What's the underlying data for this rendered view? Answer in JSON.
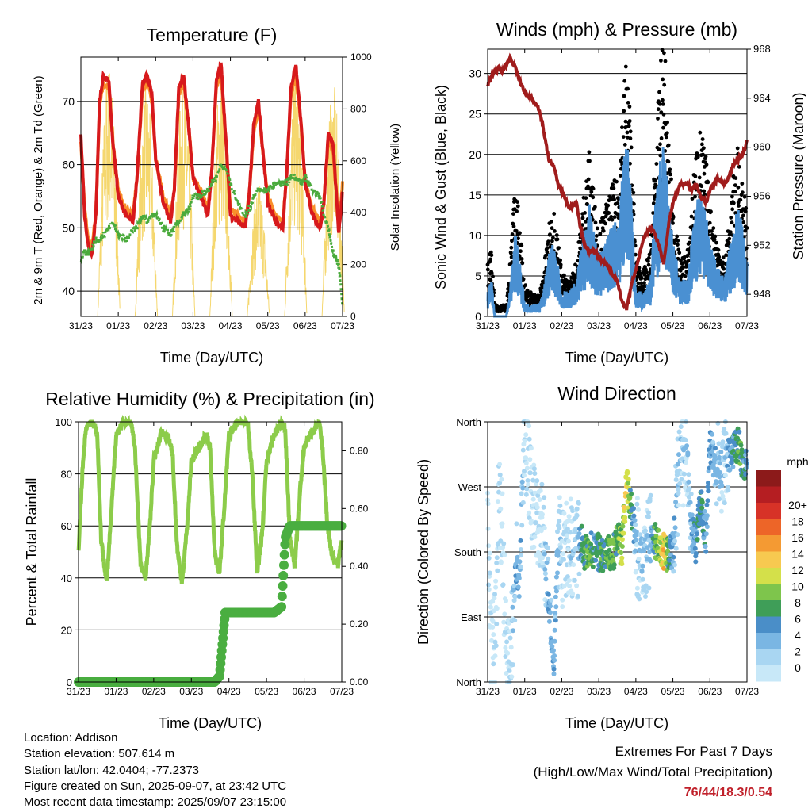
{
  "colors": {
    "temp2m": "#d7191c",
    "temp9m": "#f98e2b",
    "dewpoint": "#4aaa3c",
    "solar": "#f5d76e",
    "gust": "#000000",
    "wind": "#4a90d2",
    "pressure": "#a01c1c",
    "rh": "#8ccc4a",
    "precip": "#4aae40",
    "extremes": "#c0202a",
    "wind_scale": [
      "#c8e8f8",
      "#a9d6f2",
      "#7ab6e3",
      "#4a8ec8",
      "#3f9e58",
      "#7ec54c",
      "#d4e04a",
      "#f7c950",
      "#f49a33",
      "#ed6528",
      "#d73227",
      "#b51e22",
      "#8c1a1a"
    ]
  },
  "x_ticks": [
    "31/23",
    "01/23",
    "02/23",
    "03/23",
    "04/23",
    "05/23",
    "06/23",
    "07/23"
  ],
  "panels": {
    "temperature": {
      "title": "Temperature (F)",
      "xlabel": "Time (Day/UTC)",
      "ylabel_left": "2m & 9m T (Red, Orange) & 2m Td (Green)",
      "ylabel_right": "Solar Insolation (Yellow)",
      "left_ticks": [
        "40",
        "50",
        "60",
        "70"
      ],
      "right_ticks": [
        "0",
        "200",
        "400",
        "600",
        "800",
        "1000"
      ]
    },
    "winds": {
      "title": "Winds (mph) & Pressure (mb)",
      "xlabel": "Time (Day/UTC)",
      "ylabel_left": "Sonic Wind & Gust (Blue, Black)",
      "ylabel_right": "Station Pressure (Maroon)",
      "left_ticks": [
        "0",
        "5",
        "10",
        "15",
        "20",
        "25",
        "30"
      ],
      "right_ticks": [
        "948",
        "952",
        "956",
        "960",
        "964",
        "968"
      ]
    },
    "humidity": {
      "title": "Relative Humidity (%) & Precipitation (in)",
      "xlabel": "Time (Day/UTC)",
      "ylabel_left": "Percent & Total Rainfall",
      "left_ticks": [
        "0",
        "20",
        "40",
        "60",
        "80",
        "100"
      ],
      "right_ticks": [
        "0.00",
        "0.20",
        "0.40",
        "0.60",
        "0.80"
      ]
    },
    "direction": {
      "title": "Wind Direction",
      "xlabel": "Time (Day/UTC)",
      "ylabel_left": "Direction (Colored By Speed)",
      "left_ticks": [
        "North",
        "East",
        "South",
        "West",
        "North"
      ],
      "colorbar_title": "mph",
      "colorbar_labels": [
        "0",
        "2",
        "4",
        "6",
        "8",
        "10",
        "12",
        "14",
        "16",
        "18",
        "20+"
      ]
    }
  },
  "chart_data": [
    {
      "type": "line",
      "title": "Temperature (F)",
      "xlabel": "Time (Day/UTC)",
      "ylabel": "2m & 9m T (Red, Orange) & 2m Td (Green)",
      "y2label": "Solar Insolation (Yellow)",
      "ylim": [
        36,
        77
      ],
      "y2lim": [
        0,
        1000
      ],
      "x": [
        0,
        0.1,
        0.2,
        0.3,
        0.4,
        0.5,
        0.6,
        0.75,
        0.85,
        1.0,
        1.2,
        1.4,
        1.5,
        1.65,
        1.78,
        1.9,
        2.0,
        2.2,
        2.4,
        2.5,
        2.62,
        2.75,
        2.9,
        3.0,
        3.2,
        3.4,
        3.5,
        3.62,
        3.75,
        3.9,
        4.0,
        4.2,
        4.4,
        4.5,
        4.62,
        4.75,
        4.9,
        5.0,
        5.2,
        5.4,
        5.5,
        5.62,
        5.75,
        5.9,
        6.0,
        6.2,
        6.4,
        6.5,
        6.62,
        6.75,
        6.9,
        7.0
      ],
      "series": [
        {
          "name": "2m T",
          "values": [
            65,
            52,
            47,
            46,
            52,
            70,
            74,
            73,
            64,
            55,
            52,
            51,
            58,
            73,
            74,
            71,
            61,
            54,
            51,
            56,
            72,
            74,
            65,
            58,
            55,
            52,
            59,
            73,
            76,
            62,
            52,
            51,
            50,
            55,
            66,
            70,
            60,
            54,
            51,
            50,
            58,
            72,
            76,
            66,
            57,
            52,
            50,
            54,
            65,
            63,
            49,
            56
          ]
        },
        {
          "name": "9m T",
          "values": [
            64,
            53,
            48,
            47,
            52,
            69,
            73,
            72,
            64,
            56,
            53,
            52,
            58,
            72,
            73,
            70,
            61,
            55,
            52,
            56,
            71,
            73,
            65,
            58,
            56,
            53,
            59,
            72,
            74,
            62,
            53,
            52,
            51,
            55,
            65,
            69,
            60,
            55,
            52,
            51,
            58,
            71,
            74,
            66,
            57,
            53,
            51,
            54,
            64,
            62,
            50,
            57
          ]
        },
        {
          "name": "2m Td",
          "values": [
            45,
            46,
            46,
            47,
            48,
            48,
            49,
            50,
            51,
            49,
            48,
            50,
            50,
            52,
            51,
            52,
            52,
            50,
            49,
            50,
            51,
            52,
            53,
            55,
            55,
            56,
            57,
            58,
            60,
            59,
            57,
            54,
            52,
            53,
            55,
            56,
            56,
            56,
            57,
            57,
            57,
            58,
            58,
            57,
            58,
            56,
            55,
            52,
            50,
            46,
            44,
            38
          ]
        }
      ],
      "solar_days": [
        0.75,
        1.75,
        2.75,
        3.75,
        4.75,
        5.75,
        6.75
      ],
      "solar_peaks": [
        990,
        900,
        950,
        960,
        520,
        950,
        900
      ]
    },
    {
      "type": "line",
      "title": "Winds (mph) & Pressure (mb)",
      "xlabel": "Time (Day/UTC)",
      "ylabel": "Sonic Wind & Gust (Blue, Black)",
      "y2label": "Station Pressure (Maroon)",
      "ylim": [
        0,
        33
      ],
      "y2lim": [
        946.2,
        968
      ],
      "x": [
        0,
        0.1,
        0.2,
        0.3,
        0.4,
        0.5,
        0.6,
        0.75,
        0.85,
        1.0,
        1.2,
        1.4,
        1.5,
        1.65,
        1.78,
        1.9,
        2.0,
        2.2,
        2.4,
        2.5,
        2.62,
        2.75,
        2.9,
        3.0,
        3.2,
        3.4,
        3.5,
        3.62,
        3.75,
        3.9,
        4.0,
        4.2,
        4.4,
        4.5,
        4.62,
        4.75,
        4.9,
        5.0,
        5.2,
        5.4,
        5.5,
        5.62,
        5.75,
        5.9,
        6.0,
        6.2,
        6.4,
        6.5,
        6.62,
        6.75,
        6.9,
        7.0
      ],
      "series": [
        {
          "name": "Gust",
          "values": [
            5,
            6,
            1,
            1,
            1,
            1,
            5,
            12,
            9,
            3,
            2,
            2,
            4,
            8,
            10,
            7,
            4,
            3,
            5,
            8,
            12,
            15,
            10,
            8,
            10,
            12,
            12,
            18,
            24,
            15,
            5,
            4,
            6,
            14,
            20,
            26,
            15,
            10,
            5,
            6,
            10,
            15,
            17,
            14,
            10,
            7,
            5,
            8,
            12,
            15,
            12,
            9
          ]
        },
        {
          "name": "Sonic Wind",
          "values": [
            2,
            3,
            0,
            0,
            0,
            0,
            2,
            7,
            5,
            1,
            1,
            1,
            2,
            5,
            6,
            4,
            2,
            2,
            3,
            5,
            7,
            9,
            6,
            5,
            6,
            8,
            7,
            11,
            15,
            9,
            2,
            2,
            3,
            8,
            12,
            15,
            9,
            6,
            3,
            3,
            6,
            9,
            10,
            8,
            6,
            4,
            3,
            5,
            7,
            9,
            7,
            5
          ]
        },
        {
          "name": "Station Pressure",
          "values": [
            965,
            965.8,
            966.2,
            966.5,
            966.2,
            966.8,
            967.2,
            966.5,
            965.5,
            964.5,
            964.0,
            963.0,
            961.5,
            959.0,
            958.5,
            957.0,
            956.5,
            955.0,
            955.5,
            953.5,
            952.0,
            951.5,
            951.5,
            951.0,
            950.5,
            949.5,
            949.0,
            947.5,
            946.8,
            949.0,
            950.0,
            952.5,
            953.5,
            953.0,
            952.0,
            950.5,
            954.0,
            955.5,
            957.0,
            957.0,
            956.5,
            957.0,
            956.0,
            955.5,
            956.5,
            957.5,
            957.0,
            957.5,
            958.5,
            959.0,
            959.5,
            960.5
          ]
        }
      ]
    },
    {
      "type": "line",
      "title": "Relative Humidity (%) & Precipitation (in)",
      "xlabel": "Time (Day/UTC)",
      "ylabel": "Percent & Total Rainfall",
      "ylim": [
        0,
        100
      ],
      "y2lim": [
        0,
        0.9
      ],
      "x": [
        0,
        0.1,
        0.2,
        0.3,
        0.4,
        0.5,
        0.6,
        0.75,
        0.85,
        1.0,
        1.2,
        1.4,
        1.5,
        1.65,
        1.78,
        1.9,
        2.0,
        2.2,
        2.4,
        2.5,
        2.62,
        2.75,
        2.9,
        3.0,
        3.2,
        3.4,
        3.5,
        3.62,
        3.75,
        3.9,
        4.0,
        4.2,
        4.4,
        4.5,
        4.62,
        4.75,
        4.9,
        5.0,
        5.2,
        5.4,
        5.5,
        5.62,
        5.75,
        5.9,
        6.0,
        6.2,
        6.4,
        6.5,
        6.62,
        6.75,
        6.9,
        7.0
      ],
      "series": [
        {
          "name": "RH",
          "values": [
            50,
            80,
            98,
            100,
            100,
            95,
            55,
            38,
            60,
            95,
            100,
            100,
            90,
            45,
            40,
            60,
            85,
            96,
            94,
            88,
            52,
            38,
            62,
            85,
            90,
            95,
            90,
            50,
            42,
            72,
            95,
            100,
            100,
            100,
            80,
            42,
            60,
            85,
            95,
            100,
            96,
            55,
            45,
            75,
            90,
            96,
            100,
            88,
            60,
            48,
            45,
            55
          ]
        },
        {
          "name": "Total Rainfall",
          "values": [
            0,
            0,
            0,
            0,
            0,
            0,
            0,
            0,
            0,
            0,
            0,
            0,
            0,
            0,
            0,
            0,
            0,
            0,
            0,
            0,
            0,
            0,
            0,
            0,
            0,
            0,
            0,
            0,
            0.02,
            0.24,
            0.24,
            0.24,
            0.24,
            0.24,
            0.24,
            0.24,
            0.24,
            0.24,
            0.24,
            0.26,
            0.5,
            0.54,
            0.54,
            0.54,
            0.54,
            0.54,
            0.54,
            0.54,
            0.54,
            0.54,
            0.54,
            0.54
          ]
        }
      ]
    },
    {
      "type": "scatter",
      "title": "Wind Direction",
      "xlabel": "Time (Day/UTC)",
      "ylabel": "Direction (Colored By Speed)",
      "ylim": [
        0,
        360
      ],
      "x": [
        0,
        0.1,
        0.2,
        0.3,
        0.4,
        0.5,
        0.6,
        0.75,
        0.85,
        1.0,
        1.2,
        1.4,
        1.5,
        1.65,
        1.78,
        1.9,
        2.0,
        2.2,
        2.4,
        2.5,
        2.62,
        2.75,
        2.9,
        3.0,
        3.2,
        3.4,
        3.5,
        3.62,
        3.75,
        3.9,
        4.0,
        4.2,
        4.4,
        4.5,
        4.62,
        4.75,
        4.9,
        5.0,
        5.2,
        5.4,
        5.5,
        5.62,
        5.75,
        5.9,
        6.0,
        6.2,
        6.4,
        6.5,
        6.62,
        6.75,
        6.9,
        7.0
      ],
      "series": [
        {
          "name": "Direction",
          "values": [
            220,
            40,
            60,
            240,
            210,
            30,
            10,
            160,
            140,
            350,
            250,
            230,
            200,
            120,
            20,
            200,
            170,
            190,
            180,
            200,
            180,
            185,
            180,
            180,
            175,
            180,
            200,
            185,
            275,
            230,
            190,
            170,
            190,
            200,
            185,
            180,
            175,
            185,
            320,
            300,
            210,
            190,
            250,
            200,
            330,
            290,
            300,
            310,
            320,
            330,
            300,
            295
          ]
        },
        {
          "name": "Speed",
          "values": [
            1,
            1,
            1,
            2,
            1,
            1,
            2,
            5,
            6,
            2,
            1,
            1,
            2,
            5,
            6,
            4,
            2,
            2,
            3,
            6,
            9,
            10,
            7,
            8,
            9,
            10,
            9,
            12,
            14,
            8,
            3,
            3,
            4,
            9,
            12,
            15,
            8,
            5,
            3,
            3,
            5,
            7,
            8,
            6,
            6,
            4,
            3,
            5,
            7,
            9,
            8,
            6
          ]
        }
      ]
    }
  ],
  "footer": {
    "location": "Location: Addison",
    "elevation": "Station elevation: 507.614 m",
    "latlon": "Station lat/lon: 42.0404; -77.2373",
    "created": "Figure created on Sun, 2025-09-07, at 23:42 UTC",
    "recent": "Most recent data timestamp: 2025/09/07 23:15:00"
  },
  "extremes": {
    "line1": "Extremes For Past 7 Days",
    "line2": "(High/Low/Max Wind/Total Precipitation)",
    "values": "76/44/18.3/0.54"
  }
}
